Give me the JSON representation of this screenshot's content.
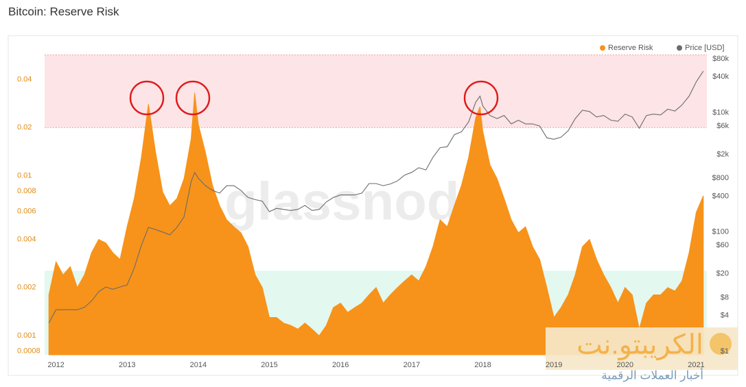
{
  "chart_data": {
    "type": "area-line",
    "title": "Bitcoin: Reserve Risk",
    "watermark": "glassnode",
    "logo_text": "الكريبتو.نت",
    "logo_subtext": "أخبار العملات الرقمية",
    "x": [
      2011.9,
      2012.0,
      2012.1,
      2012.2,
      2012.3,
      2012.4,
      2012.5,
      2012.6,
      2012.7,
      2012.8,
      2012.9,
      2013.0,
      2013.1,
      2013.2,
      2013.3,
      2013.4,
      2013.5,
      2013.6,
      2013.7,
      2013.8,
      2013.9,
      2013.95,
      2014.0,
      2014.1,
      2014.2,
      2014.3,
      2014.4,
      2014.5,
      2014.6,
      2014.7,
      2014.8,
      2014.9,
      2015.0,
      2015.1,
      2015.2,
      2015.3,
      2015.4,
      2015.5,
      2015.6,
      2015.7,
      2015.8,
      2015.9,
      2016.0,
      2016.1,
      2016.2,
      2016.3,
      2016.4,
      2016.5,
      2016.6,
      2016.7,
      2016.8,
      2016.9,
      2017.0,
      2017.1,
      2017.2,
      2017.3,
      2017.4,
      2017.5,
      2017.6,
      2017.7,
      2017.8,
      2017.9,
      2017.96,
      2018.0,
      2018.1,
      2018.2,
      2018.3,
      2018.4,
      2018.5,
      2018.6,
      2018.7,
      2018.8,
      2018.9,
      2019.0,
      2019.1,
      2019.2,
      2019.3,
      2019.4,
      2019.5,
      2019.6,
      2019.7,
      2019.8,
      2019.9,
      2020.0,
      2020.1,
      2020.2,
      2020.3,
      2020.4,
      2020.5,
      2020.6,
      2020.7,
      2020.8,
      2020.9,
      2021.0,
      2021.1
    ],
    "series": [
      {
        "name": "Reserve Risk",
        "color": "#f7931a",
        "axis": "y",
        "values": [
          0.0018,
          0.0029,
          0.0024,
          0.0027,
          0.002,
          0.0024,
          0.0033,
          0.004,
          0.0038,
          0.0033,
          0.003,
          0.0048,
          0.0072,
          0.013,
          0.028,
          0.014,
          0.0079,
          0.0065,
          0.0072,
          0.0096,
          0.017,
          0.033,
          0.021,
          0.014,
          0.0087,
          0.0065,
          0.0053,
          0.0048,
          0.0044,
          0.0036,
          0.0024,
          0.002,
          0.0013,
          0.0013,
          0.0012,
          0.00116,
          0.0011,
          0.0012,
          0.0011,
          0.001,
          0.00116,
          0.0015,
          0.0016,
          0.0014,
          0.0015,
          0.0016,
          0.0018,
          0.002,
          0.0016,
          0.0018,
          0.002,
          0.0022,
          0.0024,
          0.0022,
          0.0027,
          0.0036,
          0.0053,
          0.0048,
          0.0065,
          0.0087,
          0.013,
          0.023,
          0.027,
          0.019,
          0.0117,
          0.0096,
          0.0072,
          0.0053,
          0.0044,
          0.0048,
          0.0036,
          0.003,
          0.002,
          0.0013,
          0.0015,
          0.0018,
          0.0024,
          0.0036,
          0.004,
          0.003,
          0.0024,
          0.002,
          0.0016,
          0.002,
          0.0018,
          0.0011,
          0.0016,
          0.0018,
          0.0018,
          0.002,
          0.0019,
          0.0022,
          0.0033,
          0.0059,
          0.0075
        ]
      },
      {
        "name": "Price [USD]",
        "color": "#6b6b6b",
        "axis": "y2",
        "values": [
          3,
          5,
          5,
          5,
          5,
          5.5,
          7,
          10,
          12,
          11,
          12,
          13,
          25,
          60,
          120,
          110,
          100,
          90,
          120,
          180,
          700,
          1000,
          800,
          600,
          500,
          450,
          600,
          600,
          500,
          380,
          350,
          330,
          220,
          250,
          240,
          230,
          240,
          280,
          230,
          240,
          320,
          380,
          420,
          420,
          420,
          450,
          650,
          650,
          600,
          640,
          720,
          900,
          1000,
          1200,
          1100,
          1800,
          2600,
          2700,
          4300,
          4800,
          7000,
          15000,
          19000,
          13000,
          9000,
          8000,
          9000,
          6500,
          7500,
          6500,
          6500,
          6000,
          3800,
          3600,
          3900,
          5000,
          8000,
          11000,
          10500,
          8500,
          9000,
          7500,
          7200,
          9500,
          8500,
          5500,
          9000,
          9500,
          9200,
          11500,
          10700,
          13500,
          19000,
          33000,
          50000
        ]
      }
    ],
    "xlim": [
      2011.84,
      2021.15
    ],
    "xticks": [
      2012,
      2013,
      2014,
      2015,
      2016,
      2017,
      2018,
      2019,
      2020,
      2021
    ],
    "ylim": [
      0.00076,
      0.057
    ],
    "yticks": [
      0.04,
      0.02,
      0.01,
      0.008,
      0.006,
      0.004,
      0.002,
      0.001,
      0.0008
    ],
    "y_log": true,
    "y2lim": [
      0.877,
      93700
    ],
    "y2ticks": [
      {
        "value": 80000,
        "label": "$80k"
      },
      {
        "value": 40000,
        "label": "$40k"
      },
      {
        "value": 10000,
        "label": "$10k"
      },
      {
        "value": 6000,
        "label": "$6k"
      },
      {
        "value": 2000,
        "label": "$2k"
      },
      {
        "value": 800,
        "label": "$800"
      },
      {
        "value": 400,
        "label": "$400"
      },
      {
        "value": 100,
        "label": "$100"
      },
      {
        "value": 60,
        "label": "$60"
      },
      {
        "value": 20,
        "label": "$20"
      },
      {
        "value": 8,
        "label": "$8"
      },
      {
        "value": 4,
        "label": "$4"
      },
      {
        "value": 1,
        "label": "$1"
      }
    ],
    "y2_log": true,
    "bands": [
      {
        "from": 0.02,
        "to": 0.057,
        "color": "#fde4e6"
      },
      {
        "from": 0.00076,
        "to": 0.00255,
        "color": "#e3f8ef"
      }
    ],
    "legend": "top-right"
  }
}
